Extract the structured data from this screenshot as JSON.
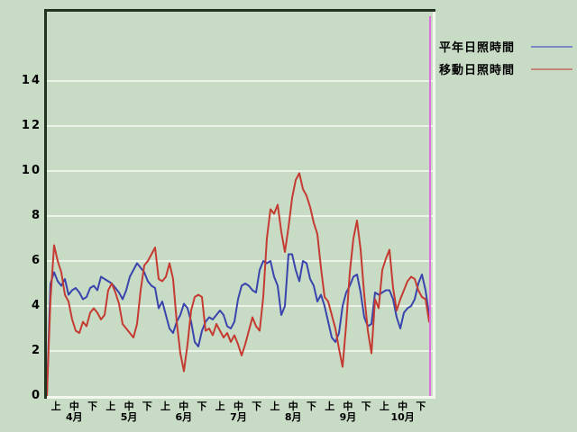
{
  "window": {
    "background_color": "#c7dbc5",
    "frame_dark_color": "#20341f",
    "frame_light_color": "#f2f8ee",
    "gridline_color": "#ecf3e8",
    "text_color": "#000000"
  },
  "legend": {
    "items": [
      {
        "label": "平年日照時間",
        "swatch_color": "#7d88c4"
      },
      {
        "label": "移動日照時間",
        "swatch_color": "#c4857d"
      }
    ]
  },
  "chart_data": {
    "type": "line",
    "title": "",
    "xlabel": "",
    "ylabel": "",
    "ylim": [
      0,
      17.2
    ],
    "yticks": [
      0,
      2,
      4,
      6,
      8,
      10,
      12,
      14
    ],
    "grid": "horizontal white gridlines every 2 units",
    "legend_position": "outside top-right",
    "x_axis": {
      "months": [
        "4月",
        "5月",
        "6月",
        "7月",
        "8月",
        "9月",
        "10月"
      ],
      "period_labels": [
        "上",
        "中",
        "下"
      ],
      "description": "21 ten-day periods (旬) from 4月上旬 to 10月下旬; series sampled about every 2 days"
    },
    "marker_line": {
      "color": "#df6edf",
      "position": "right end of data range"
    },
    "series": [
      {
        "name": "平年日照時間",
        "color": "#3a44ad",
        "values": [
          0.0,
          5.0,
          5.5,
          5.1,
          4.9,
          5.2,
          4.5,
          4.7,
          4.8,
          4.6,
          4.3,
          4.4,
          4.8,
          4.9,
          4.7,
          5.3,
          5.2,
          5.1,
          5.0,
          4.8,
          4.6,
          4.3,
          4.7,
          5.3,
          5.6,
          5.9,
          5.7,
          5.5,
          5.1,
          4.9,
          4.8,
          3.9,
          4.2,
          3.6,
          3.0,
          2.8,
          3.3,
          3.6,
          4.1,
          3.9,
          3.3,
          2.4,
          2.2,
          2.9,
          3.3,
          3.5,
          3.4,
          3.6,
          3.8,
          3.6,
          3.1,
          3.0,
          3.3,
          4.3,
          4.9,
          5.0,
          4.9,
          4.7,
          4.6,
          5.6,
          6.0,
          5.9,
          6.0,
          5.3,
          4.9,
          3.6,
          4.0,
          6.3,
          6.3,
          5.6,
          5.1,
          6.0,
          5.9,
          5.2,
          4.9,
          4.2,
          4.5,
          4.0,
          3.3,
          2.6,
          2.4,
          2.8,
          4.0,
          4.6,
          4.9,
          5.3,
          5.4,
          4.6,
          3.5,
          3.1,
          3.2,
          4.6,
          4.5,
          4.6,
          4.7,
          4.7,
          4.3,
          3.5,
          3.0,
          3.7,
          3.9,
          4.0,
          4.3,
          5.0,
          5.4,
          4.7,
          3.6
        ]
      },
      {
        "name": "移動日照時間",
        "color": "#c53b32",
        "values": [
          0.0,
          4.3,
          6.7,
          6.0,
          5.5,
          4.5,
          4.2,
          3.4,
          2.9,
          2.8,
          3.3,
          3.1,
          3.7,
          3.9,
          3.7,
          3.4,
          3.6,
          4.7,
          5.0,
          4.6,
          4.1,
          3.2,
          3.0,
          2.8,
          2.6,
          3.2,
          4.7,
          5.8,
          6.0,
          6.3,
          6.6,
          5.2,
          5.1,
          5.3,
          5.9,
          5.2,
          3.3,
          1.9,
          1.1,
          2.3,
          3.8,
          4.4,
          4.5,
          4.4,
          2.9,
          3.0,
          2.7,
          3.2,
          2.9,
          2.6,
          2.8,
          2.4,
          2.7,
          2.3,
          1.8,
          2.3,
          2.9,
          3.5,
          3.1,
          2.9,
          4.4,
          7.0,
          8.3,
          8.1,
          8.5,
          7.3,
          6.4,
          7.5,
          8.8,
          9.6,
          9.9,
          9.2,
          8.9,
          8.4,
          7.7,
          7.2,
          5.7,
          4.4,
          4.2,
          3.6,
          3.0,
          2.1,
          1.3,
          3.2,
          5.5,
          7.0,
          7.8,
          6.5,
          4.5,
          2.9,
          1.9,
          4.3,
          3.9,
          5.6,
          6.1,
          6.5,
          4.8,
          3.8,
          4.3,
          4.7,
          5.1,
          5.3,
          5.2,
          4.7,
          4.4,
          4.3,
          3.3
        ]
      }
    ]
  }
}
